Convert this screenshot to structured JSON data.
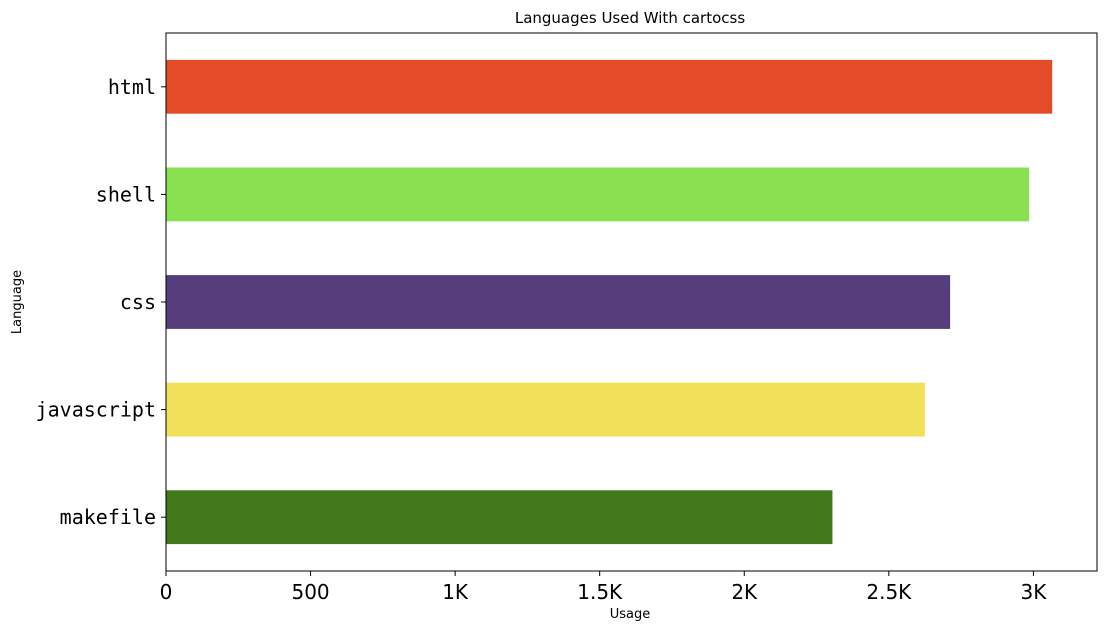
{
  "chart_data": {
    "type": "bar",
    "orientation": "horizontal",
    "title": "Languages Used With cartocss",
    "xlabel": "Usage",
    "ylabel": "Language",
    "categories": [
      "html",
      "shell",
      "css",
      "javascript",
      "makefile"
    ],
    "values": [
      3065,
      2985,
      2712,
      2625,
      2305
    ],
    "colors": [
      "#e34c26",
      "#89e051",
      "#563d7c",
      "#f1e05a",
      "#427819"
    ],
    "xlim": [
      0,
      3220
    ],
    "xticks": [
      0,
      500,
      1000,
      1500,
      2000,
      2500,
      3000
    ],
    "xtick_labels": [
      "0",
      "500",
      "1K",
      "1.5K",
      "2K",
      "2.5K",
      "3K"
    ],
    "grid": false,
    "legend": "none"
  }
}
